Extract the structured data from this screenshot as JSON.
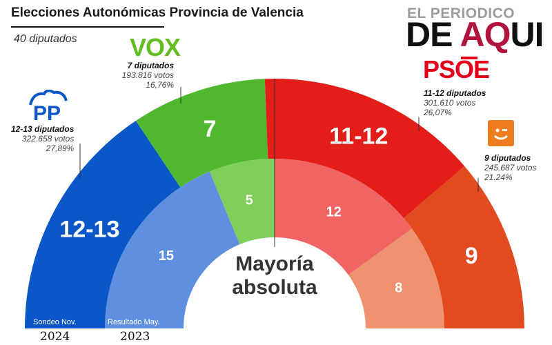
{
  "header": {
    "title": "Elecciones Autonómicas Provincia de Valencia",
    "subtitle": "40 diputados"
  },
  "brand": {
    "top": "EL PERIODICO",
    "main_left": "DE ",
    "main_accent": "AQ",
    "main_right": "UI"
  },
  "colors": {
    "pp": "#0b57c7",
    "vox": "#4fb82f",
    "psoe": "#e31e18",
    "compromis": "#e24a1f",
    "pp_prev": "#5f90e0",
    "vox_prev": "#7fd05a",
    "psoe_prev": "#f06464",
    "compromis_prev": "#ef9270"
  },
  "logos": {
    "vox": "VOX",
    "psoe": "PSOE",
    "pp": "PP"
  },
  "parties": {
    "pp": {
      "name": "12-13 diputados",
      "votes": "322.658 votos",
      "pct": "27,89%"
    },
    "vox": {
      "name": "7 diputados",
      "votes": "193.816 votos",
      "pct": "16,76%"
    },
    "psoe": {
      "name": "11-12 diputados",
      "votes": "301.610 votos",
      "pct": "26,07%"
    },
    "compromis": {
      "name": "9 diputados",
      "votes": "245.687 votos",
      "pct": "21.24%"
    }
  },
  "center_label": {
    "line1": "Mayoría",
    "line2": "absoluta"
  },
  "rings": {
    "outer": {
      "label": "Sondeo Nov.",
      "year": "2024"
    },
    "inner": {
      "label": "Resultado May.",
      "year": "2023"
    }
  },
  "chart_data": {
    "type": "pie",
    "title": "Elecciones Autonómicas Provincia de Valencia",
    "subtitle": "40 diputados",
    "total_seats": 40,
    "series": [
      {
        "name": "Sondeo Nov. 2024",
        "categories": [
          "PP",
          "VOX",
          "PSOE",
          "Compromís"
        ],
        "values": [
          12.5,
          7,
          11.5,
          9
        ],
        "labels": [
          "12-13",
          "7",
          "11-12",
          "9"
        ]
      },
      {
        "name": "Resultado May. 2023",
        "categories": [
          "PP",
          "VOX",
          "PSOE",
          "Compromís"
        ],
        "values": [
          15,
          5,
          12,
          8
        ],
        "labels": [
          "15",
          "5",
          "12",
          "8"
        ]
      }
    ]
  }
}
